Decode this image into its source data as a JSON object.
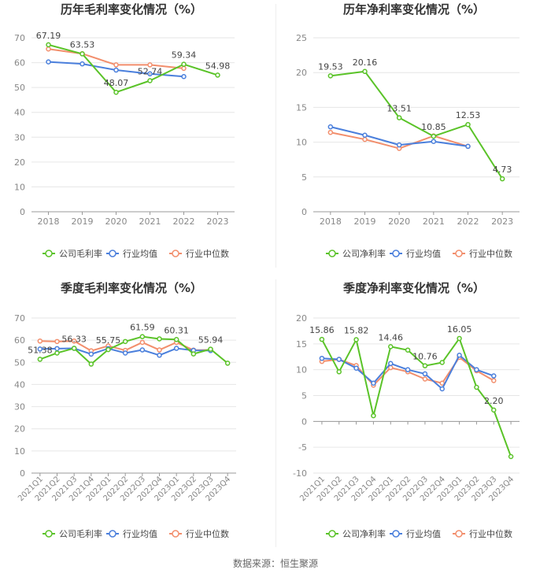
{
  "colors": {
    "company": "#5ac328",
    "avg": "#4a7fdc",
    "median": "#f28e6c",
    "grid": "#e6e6e6",
    "axis": "#999999",
    "tick": "#888888",
    "title": "#333333",
    "label": "#444444"
  },
  "source_text": "数据来源：恒生聚源",
  "chart_data": [
    {
      "type": "line",
      "title": "历年毛利率变化情况（%）",
      "categories": [
        "2018",
        "2019",
        "2020",
        "2021",
        "2022",
        "2023"
      ],
      "ylim": [
        0,
        70
      ],
      "yticks": [
        0,
        10,
        20,
        30,
        40,
        50,
        60,
        70
      ],
      "legend": [
        "公司毛利率",
        "行业均值",
        "行业中位数"
      ],
      "series": [
        {
          "name": "公司毛利率",
          "values": [
            67.19,
            63.53,
            48.07,
            52.74,
            59.34,
            54.98
          ]
        },
        {
          "name": "行业均值",
          "values": [
            60.3,
            59.5,
            57.0,
            55.5,
            54.4,
            null
          ]
        },
        {
          "name": "行业中位数",
          "values": [
            65.5,
            63.6,
            59.1,
            59.1,
            57.7,
            null
          ]
        }
      ],
      "data_labels": [
        "67.19",
        "63.53",
        "48.07",
        "52.74",
        "59.34",
        "54.98"
      ]
    },
    {
      "type": "line",
      "title": "历年净利率变化情况（%）",
      "categories": [
        "2018",
        "2019",
        "2020",
        "2021",
        "2022",
        "2023"
      ],
      "ylim": [
        0,
        25
      ],
      "yticks": [
        0,
        5,
        10,
        15,
        20,
        25
      ],
      "legend": [
        "公司净利率",
        "行业均值",
        "行业中位数"
      ],
      "series": [
        {
          "name": "公司净利率",
          "values": [
            19.53,
            20.16,
            13.51,
            10.85,
            12.53,
            4.73
          ]
        },
        {
          "name": "行业均值",
          "values": [
            12.2,
            11.0,
            9.6,
            10.1,
            9.4,
            null
          ]
        },
        {
          "name": "行业中位数",
          "values": [
            11.4,
            10.4,
            9.1,
            10.9,
            9.4,
            null
          ]
        }
      ],
      "data_labels": [
        "19.53",
        "20.16",
        "13.51",
        "10.85",
        "12.53",
        "4.73"
      ]
    },
    {
      "type": "line",
      "title": "季度毛利率变化情况（%）",
      "categories": [
        "2021Q1",
        "2021Q2",
        "2021Q3",
        "2021Q4",
        "2022Q1",
        "2022Q2",
        "2022Q3",
        "2022Q4",
        "2023Q1",
        "2023Q2",
        "2023Q3",
        "2023Q4"
      ],
      "ylim": [
        0,
        70
      ],
      "yticks": [
        0,
        10,
        20,
        30,
        40,
        50,
        60,
        70
      ],
      "legend": [
        "公司毛利率",
        "行业均值",
        "行业中位数"
      ],
      "series": [
        {
          "name": "公司毛利率",
          "values": [
            51.38,
            54.2,
            56.33,
            49.2,
            55.75,
            59.4,
            61.59,
            60.6,
            60.31,
            53.8,
            55.94,
            49.6
          ]
        },
        {
          "name": "行业均值",
          "values": [
            56.0,
            56.2,
            56.3,
            53.7,
            56.2,
            54.2,
            55.6,
            53.2,
            56.3,
            55.4,
            55.3,
            null
          ]
        },
        {
          "name": "行业中位数",
          "values": [
            59.6,
            59.4,
            59.6,
            55.2,
            57.4,
            55.4,
            59.0,
            55.6,
            59.0,
            55.5,
            55.6,
            null
          ]
        }
      ],
      "data_labels": [
        "51.38",
        null,
        "56.33",
        null,
        "55.75",
        null,
        "61.59",
        null,
        "60.31",
        null,
        "55.94",
        null
      ]
    },
    {
      "type": "line",
      "title": "季度净利率变化情况（%）",
      "categories": [
        "2021Q1",
        "2021Q2",
        "2021Q3",
        "2021Q4",
        "2022Q1",
        "2022Q2",
        "2022Q3",
        "2022Q4",
        "2023Q1",
        "2023Q2",
        "2023Q3",
        "2023Q4"
      ],
      "ylim": [
        -10,
        20
      ],
      "yticks": [
        -10,
        -5,
        0,
        5,
        10,
        15,
        20
      ],
      "legend": [
        "公司净利率",
        "行业均值",
        "行业中位数"
      ],
      "series": [
        {
          "name": "公司净利率",
          "values": [
            15.86,
            9.6,
            15.82,
            1.1,
            14.46,
            13.8,
            10.76,
            11.4,
            16.05,
            6.6,
            2.2,
            -6.8
          ]
        },
        {
          "name": "行业均值",
          "values": [
            12.2,
            12.0,
            10.3,
            7.4,
            11.2,
            10.0,
            9.2,
            6.3,
            12.8,
            10.0,
            8.8,
            null
          ]
        },
        {
          "name": "行业中位数",
          "values": [
            11.6,
            12.0,
            10.8,
            7.0,
            10.4,
            9.6,
            8.2,
            7.4,
            12.4,
            9.8,
            7.9,
            null
          ]
        }
      ],
      "data_labels": [
        "15.86",
        null,
        "15.82",
        null,
        "14.46",
        null,
        "10.76",
        null,
        "16.05",
        null,
        "2.20",
        null
      ]
    }
  ]
}
